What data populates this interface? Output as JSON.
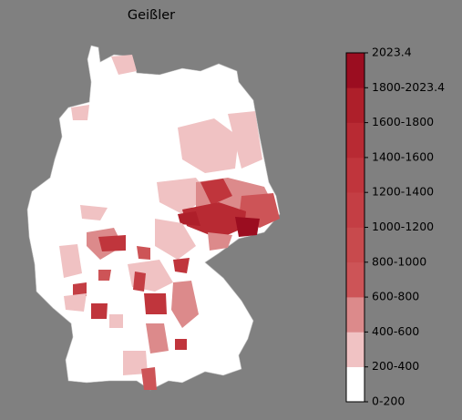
{
  "title": "Geißler",
  "legend": {
    "labels": [
      "0-200",
      "200-400",
      "400-600",
      "600-800",
      "800-1000",
      "1000-1200",
      "1200-1400",
      "1400-1600",
      "1600-1800",
      "1800-2023.4",
      "2023.4"
    ],
    "colors": [
      "#ffffff",
      "#f0c2c3",
      "#dc8a8b",
      "#cd5457",
      "#c84a4d",
      "#c43e44",
      "#c0353c",
      "#b82a33",
      "#ae1f2a",
      "#9b0d20"
    ]
  }
}
